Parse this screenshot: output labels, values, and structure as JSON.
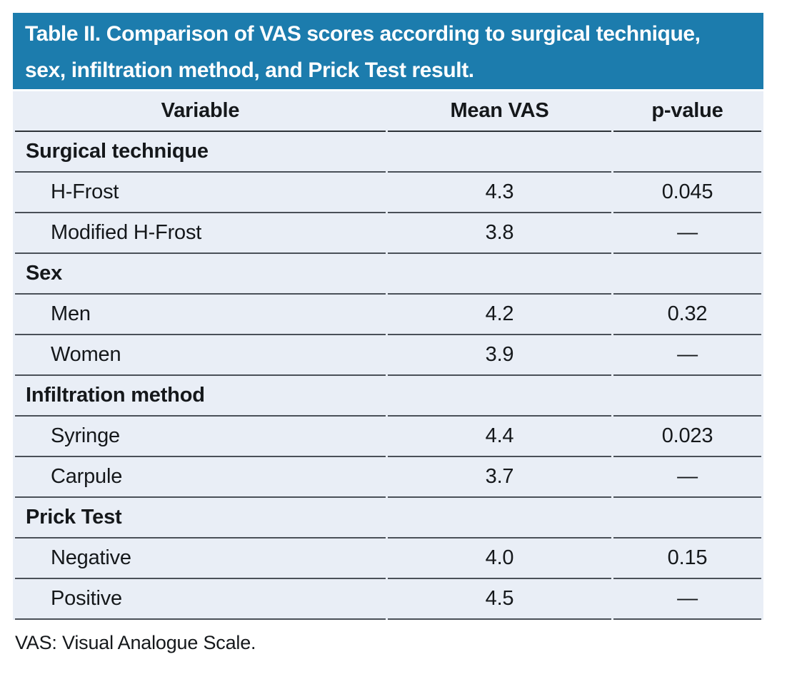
{
  "theme": {
    "banner_bg": "#1C7CAD",
    "row_bg": "#E9EEF6",
    "rule_color": "#4A5058",
    "text_color": "#15181B"
  },
  "banner": {
    "title": "Table II. Comparison of VAS scores according to surgical technique, sex, infiltration method, and Prick Test result."
  },
  "table": {
    "columns": [
      "Variable",
      "Mean VAS",
      "p-value"
    ],
    "groups": [
      {
        "label": "Surgical technique",
        "rows": [
          {
            "label": "H-Frost",
            "mean_vas": "4.3",
            "p_value": "0.045"
          },
          {
            "label": "Modified H-Frost",
            "mean_vas": "3.8",
            "p_value": "—"
          }
        ]
      },
      {
        "label": "Sex",
        "rows": [
          {
            "label": "Men",
            "mean_vas": "4.2",
            "p_value": "0.32"
          },
          {
            "label": "Women",
            "mean_vas": "3.9",
            "p_value": "—"
          }
        ]
      },
      {
        "label": "Infiltration method",
        "rows": [
          {
            "label": "Syringe",
            "mean_vas": "4.4",
            "p_value": "0.023"
          },
          {
            "label": "Carpule",
            "mean_vas": "3.7",
            "p_value": "—"
          }
        ]
      },
      {
        "label": "Prick Test",
        "rows": [
          {
            "label": "Negative",
            "mean_vas": "4.0",
            "p_value": "0.15"
          },
          {
            "label": "Positive",
            "mean_vas": "4.5",
            "p_value": "—"
          }
        ]
      }
    ]
  },
  "footnote": "VAS: Visual Analogue Scale."
}
